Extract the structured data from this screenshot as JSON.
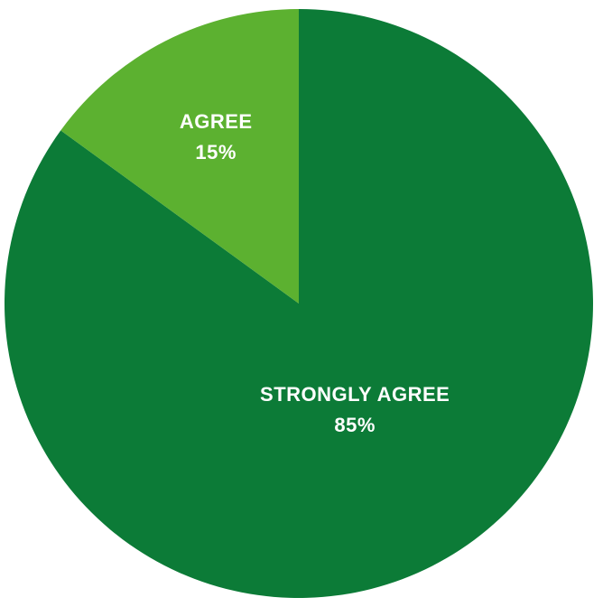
{
  "chart_data": {
    "type": "pie",
    "title": "",
    "slices": [
      {
        "label": "STRONGLY AGREE",
        "value": 85,
        "display": "85%",
        "color": "#0c7b37"
      },
      {
        "label": "AGREE",
        "value": 15,
        "display": "15%",
        "color": "#5cb130"
      }
    ],
    "start_angle_deg": 0,
    "direction": "clockwise",
    "legend": "none"
  }
}
